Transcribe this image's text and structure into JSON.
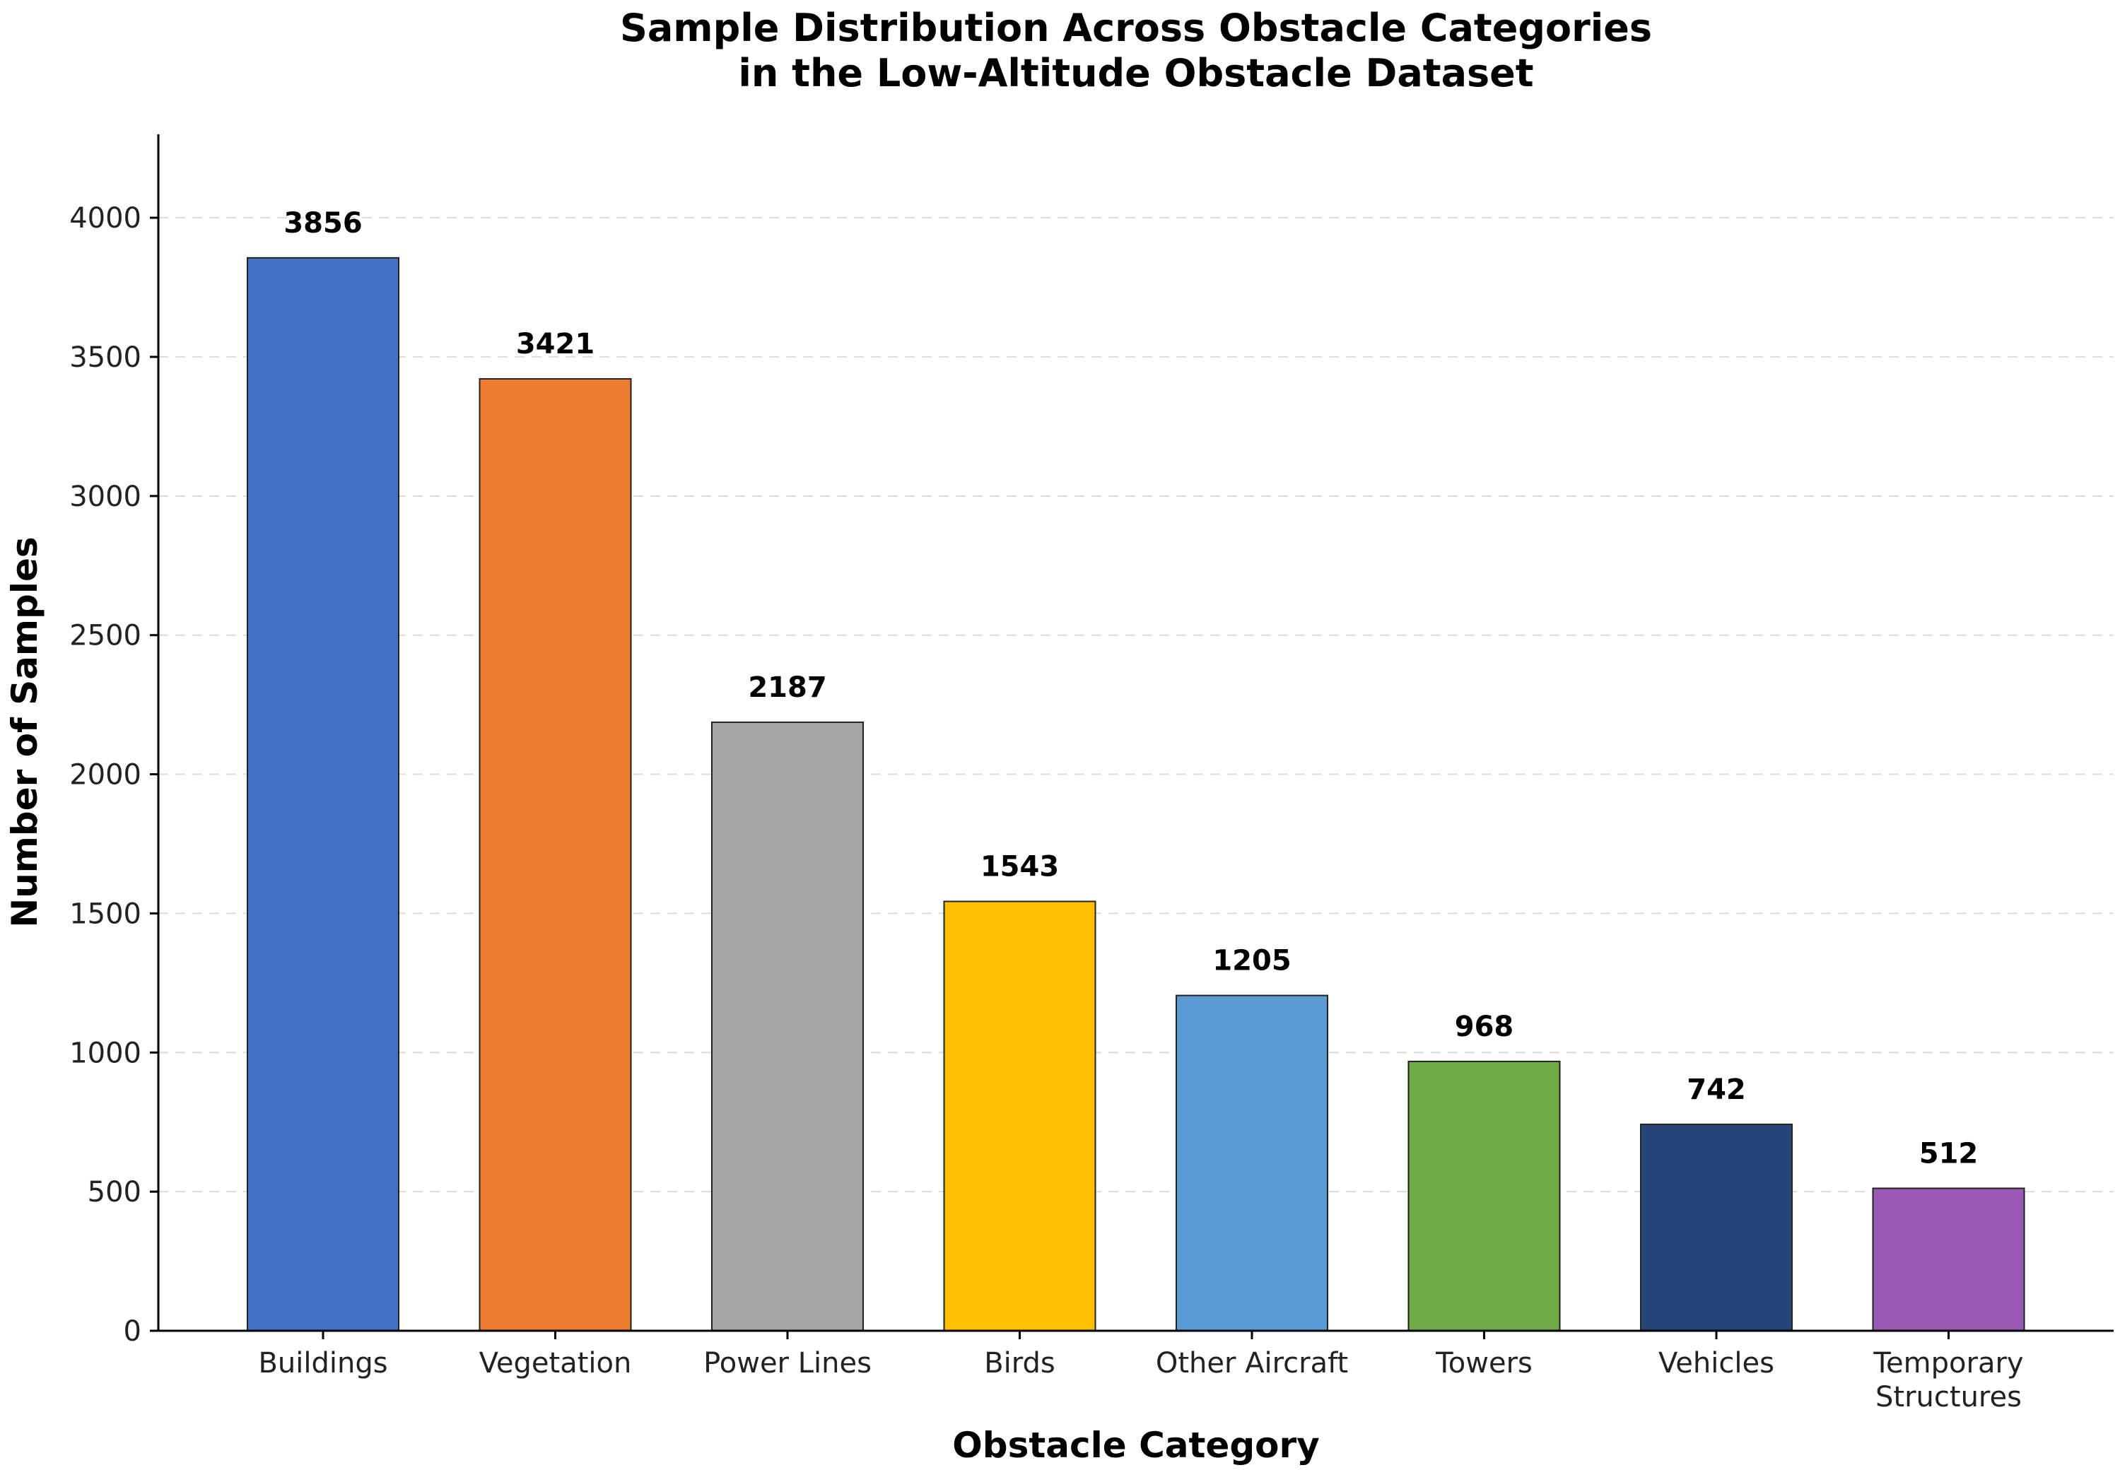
{
  "chart_data": {
    "type": "bar",
    "title_lines": [
      "Sample Distribution Across Obstacle Categories",
      "in the Low-Altitude Obstacle Dataset"
    ],
    "xlabel": "Obstacle Category",
    "ylabel": "Number of Samples",
    "categories": [
      [
        "Buildings"
      ],
      [
        "Vegetation"
      ],
      [
        "Power Lines"
      ],
      [
        "Birds"
      ],
      [
        "Other Aircraft"
      ],
      [
        "Towers"
      ],
      [
        "Vehicles"
      ],
      [
        "Temporary",
        "Structures"
      ]
    ],
    "values": [
      3856,
      3421,
      2187,
      1543,
      1205,
      968,
      742,
      512
    ],
    "colors": [
      "#4472C4",
      "#ED7D31",
      "#A5A5A5",
      "#FFC000",
      "#5B9BD5",
      "#70AD47",
      "#264478",
      "#9B59B6"
    ],
    "ylim": [
      0,
      4300
    ],
    "yticks": [
      0,
      500,
      1000,
      1500,
      2000,
      2500,
      3000,
      3500,
      4000
    ],
    "grid": "horizontal-dashed",
    "legend": "none"
  }
}
